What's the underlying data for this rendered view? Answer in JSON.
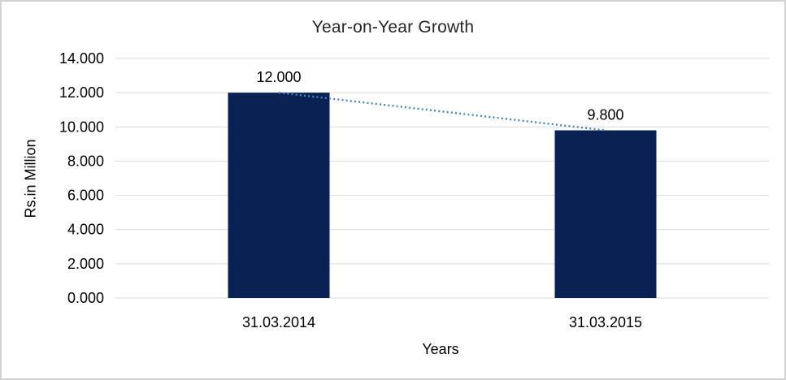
{
  "chart_data": {
    "type": "bar",
    "title": "Year-on-Year Growth",
    "xlabel": "Years",
    "ylabel": "Rs.in Million",
    "categories": [
      "31.03.2014",
      "31.03.2015"
    ],
    "values": [
      12.0,
      9.8
    ],
    "data_labels": [
      "12.000",
      "9.800"
    ],
    "y_ticks": [
      {
        "value": 14,
        "label": "14.000"
      },
      {
        "value": 12,
        "label": "12.000"
      },
      {
        "value": 10,
        "label": "10.000"
      },
      {
        "value": 8,
        "label": "8.000"
      },
      {
        "value": 6,
        "label": "6.000"
      },
      {
        "value": 4,
        "label": "4.000"
      },
      {
        "value": 2,
        "label": "2.000"
      },
      {
        "value": 0,
        "label": "0.000"
      }
    ],
    "ylim": [
      0,
      14
    ],
    "grid": true,
    "legend": false,
    "trendline": {
      "style": "dotted",
      "from_value": 12.0,
      "to_value": 9.8,
      "color": "#4a86c6"
    },
    "colors": {
      "bar": "#0a2154",
      "gridline": "#d9d9d9",
      "text": "#000000",
      "title_text": "#262626",
      "frame_border": "#d3d3d3",
      "background": "#ffffff"
    }
  }
}
